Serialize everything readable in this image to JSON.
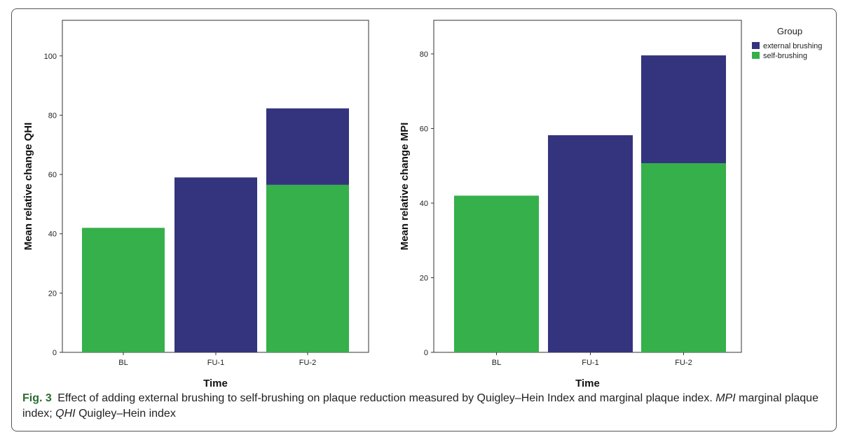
{
  "chart_data": [
    {
      "type": "bar",
      "stacked": true,
      "categories": [
        "BL",
        "FU-1",
        "FU-2"
      ],
      "series": [
        {
          "name": "self-brushing",
          "color": "#35b04b",
          "values": [
            42,
            0,
            56.5
          ]
        },
        {
          "name": "external brushing",
          "color": "#34337e",
          "values": [
            0,
            59,
            25.8
          ]
        }
      ],
      "totals": [
        42,
        59,
        82.3
      ],
      "xlabel": "Time",
      "ylabel": "Mean relative change QHI",
      "ylim": [
        0,
        112
      ],
      "yticks": [
        0,
        20,
        40,
        60,
        80,
        100
      ],
      "grid": false
    },
    {
      "type": "bar",
      "stacked": true,
      "categories": [
        "BL",
        "FU-1",
        "FU-2"
      ],
      "series": [
        {
          "name": "self-brushing",
          "color": "#35b04b",
          "values": [
            42,
            0,
            50.7
          ]
        },
        {
          "name": "external brushing",
          "color": "#34337e",
          "values": [
            0,
            58.2,
            28.9
          ]
        }
      ],
      "totals": [
        42,
        58.2,
        79.6
      ],
      "xlabel": "Time",
      "ylabel": "Mean relative change MPI",
      "ylim": [
        0,
        89
      ],
      "yticks": [
        0,
        20,
        40,
        60,
        80
      ],
      "grid": false
    }
  ],
  "legend": {
    "title": "Group",
    "placement": "top-right",
    "items": [
      {
        "label": "external brushing",
        "color": "#34337e"
      },
      {
        "label": "self-brushing",
        "color": "#35b04b"
      }
    ]
  },
  "caption": {
    "label": "Fig. 3",
    "text_main": "Effect of adding external brushing to self-brushing on plaque reduction measured by Quigley–Hein Index and marginal plaque index.",
    "abbr1": "MPI",
    "text_mid": "marginal plaque index;",
    "abbr2": "QHI",
    "text_end": "Quigley–Hein index"
  }
}
